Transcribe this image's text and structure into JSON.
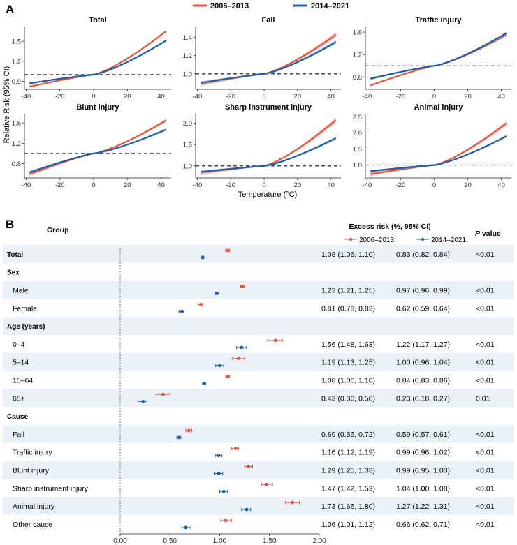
{
  "panel_a_label": "A",
  "panel_b_label": "B",
  "legend": [
    {
      "name": "2006–2013",
      "color": "#e8533f"
    },
    {
      "name": "2014–2021",
      "color": "#1f5fa6"
    }
  ],
  "colors": {
    "red": "#e8533f",
    "blue": "#1f5fa6",
    "band_red": "#f4b1a8",
    "band_blue": "#9fbfe0",
    "row_shade": "#eaf1f9"
  },
  "y_axis_label": "Relative Risk (95% CI)",
  "x_axis_label": "Temperature (°C)",
  "chart_data": [
    {
      "type": "line",
      "title": "Total",
      "x": [
        -38,
        43
      ],
      "xticks": [
        -40,
        -20,
        0,
        20,
        40
      ],
      "yticks": [
        0.9,
        1.2,
        1.5
      ],
      "ylim": [
        0.78,
        1.72
      ],
      "reference_line": 1.0,
      "series": [
        {
          "name": "2006–2013",
          "start": 0.82,
          "end": 1.65,
          "ci": 0.015
        },
        {
          "name": "2014–2021",
          "start": 0.87,
          "end": 1.51,
          "ci": 0.012
        }
      ]
    },
    {
      "type": "line",
      "title": "Fall",
      "x": [
        -38,
        43
      ],
      "xticks": [
        -40,
        -20,
        0,
        20,
        40
      ],
      "yticks": [
        1.0,
        1.2,
        1.4
      ],
      "ylim": [
        0.83,
        1.52
      ],
      "reference_line": 1.0,
      "series": [
        {
          "name": "2006–2013",
          "start": 0.89,
          "end": 1.43,
          "ci": 0.03
        },
        {
          "name": "2014–2021",
          "start": 0.9,
          "end": 1.35,
          "ci": 0.02
        }
      ]
    },
    {
      "type": "line",
      "title": "Traffic injury",
      "x": [
        -38,
        43
      ],
      "xticks": [
        -40,
        -20,
        0,
        20,
        40
      ],
      "yticks": [
        0.8,
        1.2,
        1.6
      ],
      "ylim": [
        0.58,
        1.7
      ],
      "reference_line": 1.0,
      "series": [
        {
          "name": "2006–2013",
          "start": 0.65,
          "end": 1.55,
          "ci": 0.015
        },
        {
          "name": "2014–2021",
          "start": 0.77,
          "end": 1.58,
          "ci": 0.025
        }
      ]
    },
    {
      "type": "line",
      "title": "Blunt injury",
      "x": [
        -38,
        43
      ],
      "xticks": [
        -40,
        -20,
        0,
        20,
        40
      ],
      "yticks": [
        0.8,
        1.2,
        1.6
      ],
      "ylim": [
        0.52,
        1.78
      ],
      "reference_line": 1.0,
      "series": [
        {
          "name": "2006–2013",
          "start": 0.59,
          "end": 1.65,
          "ci": 0.03
        },
        {
          "name": "2014–2021",
          "start": 0.63,
          "end": 1.47,
          "ci": 0.025
        }
      ]
    },
    {
      "type": "line",
      "title": "Sharp instrument injury",
      "x": [
        -38,
        43
      ],
      "xticks": [
        -40,
        -20,
        0,
        20,
        40
      ],
      "yticks": [
        1.0,
        1.5,
        2.0
      ],
      "ylim": [
        0.72,
        2.22
      ],
      "reference_line": 1.0,
      "series": [
        {
          "name": "2006–2013",
          "start": 0.84,
          "end": 2.07,
          "ci": 0.06
        },
        {
          "name": "2014–2021",
          "start": 0.86,
          "end": 1.65,
          "ci": 0.035
        }
      ]
    },
    {
      "type": "line",
      "title": "Animal injury",
      "x": [
        -38,
        43
      ],
      "xticks": [
        -40,
        -20,
        0,
        20,
        40
      ],
      "yticks": [
        1.0,
        1.5,
        2.0,
        2.5
      ],
      "ylim": [
        0.6,
        2.6
      ],
      "reference_line": 1.0,
      "series": [
        {
          "name": "2006–2013",
          "start": 0.72,
          "end": 2.3,
          "ci": 0.07
        },
        {
          "name": "2014–2021",
          "start": 0.81,
          "end": 1.9,
          "ci": 0.04
        }
      ]
    },
    {
      "type": "forest",
      "title": "Excess risk (%, 95% CI)",
      "headers": {
        "group": "Group",
        "excess": "Excess risk (%, 95% CI)",
        "p": "value",
        "p_italic": "P"
      },
      "series_names": [
        "2006–2013",
        "2014–2021"
      ],
      "xticks": [
        "0.00",
        "0.50",
        "1.00",
        "1.50",
        "2.00"
      ],
      "xlim": [
        0,
        2
      ],
      "rows": [
        {
          "label": "Total",
          "kind": "total",
          "shaded": true,
          "est1": 1.08,
          "lo1": 1.06,
          "hi1": 1.1,
          "est2": 0.83,
          "lo2": 0.82,
          "hi2": 0.84,
          "text1": "1.08 (1.06, 1.10)",
          "text2": "0.83 (0.82, 0.84)",
          "p": "<0.01"
        },
        {
          "label": "Sex",
          "kind": "header",
          "shaded": false
        },
        {
          "label": "Male",
          "kind": "item",
          "shaded": true,
          "est1": 1.23,
          "lo1": 1.21,
          "hi1": 1.25,
          "est2": 0.97,
          "lo2": 0.96,
          "hi2": 0.99,
          "text1": "1.23 (1.21, 1.25)",
          "text2": "0.97 (0.96, 0.99)",
          "p": "<0.01"
        },
        {
          "label": "Female",
          "kind": "item",
          "shaded": false,
          "est1": 0.81,
          "lo1": 0.78,
          "hi1": 0.83,
          "est2": 0.62,
          "lo2": 0.59,
          "hi2": 0.64,
          "text1": "0.81 (0.78, 0.83)",
          "text2": "0.62 (0.59, 0.64)",
          "p": "<0.01"
        },
        {
          "label": "Age (years)",
          "kind": "header",
          "shaded": true
        },
        {
          "label": "0–4",
          "kind": "item",
          "shaded": false,
          "est1": 1.56,
          "lo1": 1.48,
          "hi1": 1.63,
          "est2": 1.22,
          "lo2": 1.17,
          "hi2": 1.27,
          "text1": "1.56 (1.48, 1.63)",
          "text2": "1.22 (1.17, 1.27)",
          "p": "<0.01"
        },
        {
          "label": "5–14",
          "kind": "item",
          "shaded": true,
          "est1": 1.19,
          "lo1": 1.13,
          "hi1": 1.25,
          "est2": 1.0,
          "lo2": 0.96,
          "hi2": 1.04,
          "text1": "1.19 (1.13, 1.25)",
          "text2": "1.00 (0.96, 1.04)",
          "p": "<0.01"
        },
        {
          "label": "15–64",
          "kind": "item",
          "shaded": false,
          "est1": 1.08,
          "lo1": 1.06,
          "hi1": 1.1,
          "est2": 0.84,
          "lo2": 0.83,
          "hi2": 0.86,
          "text1": "1.08 (1.06, 1.10)",
          "text2": "0.84 (0.83, 0.86)",
          "p": "<0.01"
        },
        {
          "label": "65+",
          "kind": "item",
          "shaded": true,
          "est1": 0.43,
          "lo1": 0.36,
          "hi1": 0.5,
          "est2": 0.23,
          "lo2": 0.18,
          "hi2": 0.27,
          "text1": "0.43 (0.36, 0.50)",
          "text2": "0.23 (0.18, 0.27)",
          "p": "0.01"
        },
        {
          "label": "Cause",
          "kind": "header",
          "shaded": false
        },
        {
          "label": "Fall",
          "kind": "item",
          "shaded": true,
          "est1": 0.69,
          "lo1": 0.66,
          "hi1": 0.72,
          "est2": 0.59,
          "lo2": 0.57,
          "hi2": 0.61,
          "text1": "0.69 (0.66, 0.72)",
          "text2": "0.59 (0.57, 0.61)",
          "p": "<0.01"
        },
        {
          "label": "Traffic injury",
          "kind": "item",
          "shaded": false,
          "est1": 1.16,
          "lo1": 1.12,
          "hi1": 1.19,
          "est2": 0.99,
          "lo2": 0.96,
          "hi2": 1.02,
          "text1": "1.16 (1.12, 1.19)",
          "text2": "0.99 (0.96, 1.02)",
          "p": "<0.01"
        },
        {
          "label": "Blunt injury",
          "kind": "item",
          "shaded": true,
          "est1": 1.29,
          "lo1": 1.25,
          "hi1": 1.33,
          "est2": 0.99,
          "lo2": 0.95,
          "hi2": 1.03,
          "text1": "1.29 (1.25, 1.33)",
          "text2": "0.99 (0.95, 1.03)",
          "p": "<0.01"
        },
        {
          "label": "Sharp instrument injury",
          "kind": "item",
          "shaded": false,
          "est1": 1.47,
          "lo1": 1.42,
          "hi1": 1.53,
          "est2": 1.04,
          "lo2": 1.0,
          "hi2": 1.08,
          "text1": "1.47 (1.42, 1.53)",
          "text2": "1.04 (1.00, 1.08)",
          "p": "<0.01"
        },
        {
          "label": "Animal injury",
          "kind": "item",
          "shaded": true,
          "est1": 1.73,
          "lo1": 1.66,
          "hi1": 1.8,
          "est2": 1.27,
          "lo2": 1.22,
          "hi2": 1.31,
          "text1": "1.73 (1.66, 1.80)",
          "text2": "1.27 (1.22, 1.31)",
          "p": "<0.01"
        },
        {
          "label": "Other cause",
          "kind": "item",
          "shaded": false,
          "est1": 1.06,
          "lo1": 1.01,
          "hi1": 1.12,
          "est2": 0.66,
          "lo2": 0.62,
          "hi2": 0.71,
          "text1": "1.06 (1.01, 1.12)",
          "text2": "0.66 (0.62, 0.71)",
          "p": "<0.01"
        }
      ]
    }
  ]
}
